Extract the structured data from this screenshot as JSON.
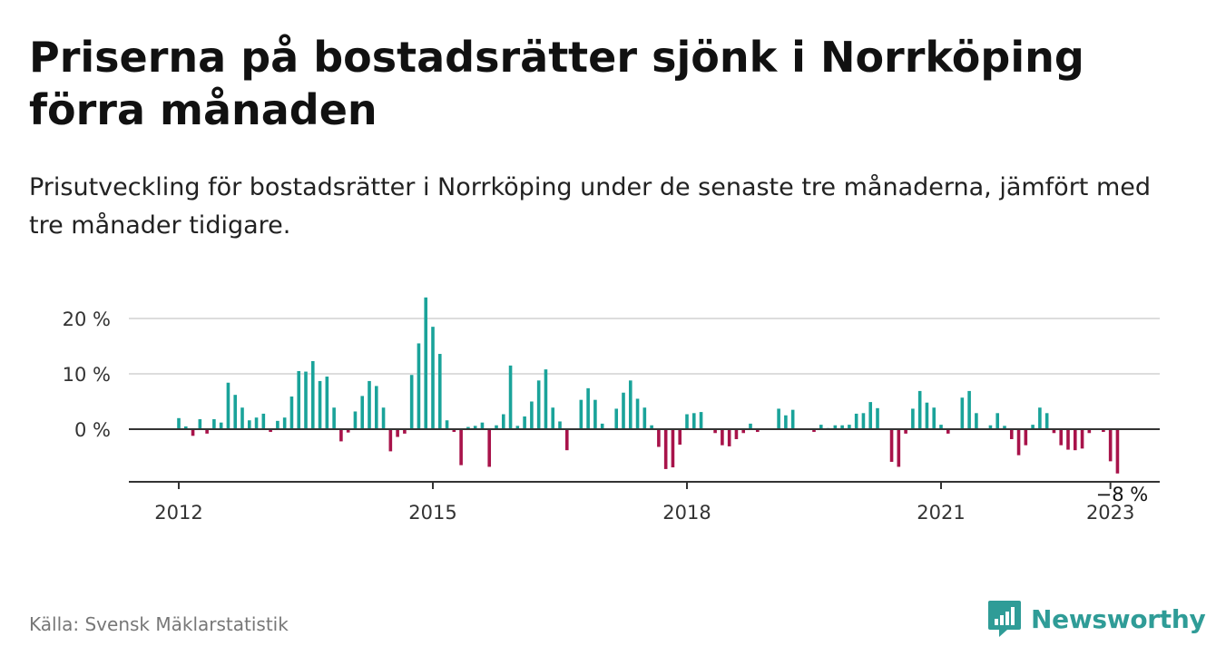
{
  "title": "Priserna på bostadsrätter sjönk i Norrköping förra månaden",
  "subtitle": "Prisutveckling för bostadsrätter i Norrköping under de senaste tre månaderna, jämfört med tre månader tidigare.",
  "source": "Källa: Svensk Mäklarstatistik",
  "brand": {
    "name": "Newsworthy",
    "icon": "newsworthy-logo-icon"
  },
  "colors": {
    "positive": "#1aa39a",
    "negative": "#a8134a",
    "grid": "#dddddd",
    "axis": "#333333"
  },
  "chart_data": {
    "type": "bar",
    "title": "Priserna på bostadsrätter sjönk i Norrköping förra månaden",
    "xlabel": "",
    "ylabel": "",
    "ylim": [
      -9.5,
      23
    ],
    "y_ticks": [
      {
        "value": 0,
        "label": "0 %"
      },
      {
        "value": 10,
        "label": "10 %"
      },
      {
        "value": 20,
        "label": "20 %"
      }
    ],
    "x_ticks": [
      {
        "value": 2012.0,
        "label": "2012"
      },
      {
        "value": 2015.0,
        "label": "2015"
      },
      {
        "value": 2018.0,
        "label": "2018"
      },
      {
        "value": 2021.0,
        "label": "2021"
      },
      {
        "value": 2023.0,
        "label": "2023"
      }
    ],
    "grid": true,
    "annotation": {
      "label": "−8 %",
      "value": -8
    },
    "x_start": "2012-01",
    "x_end": "2023-01",
    "values": [
      2,
      0.5,
      -1.2,
      1.8,
      -0.8,
      1.8,
      1.2,
      8.4,
      6.2,
      3.9,
      1.6,
      2.1,
      2.8,
      -0.5,
      1.5,
      2.1,
      5.9,
      10.5,
      10.4,
      12.3,
      8.7,
      9.5,
      3.9,
      -2.2,
      -0.6,
      3.2,
      6,
      8.7,
      7.8,
      3.9,
      -4,
      -1.4,
      -0.8,
      9.8,
      15.5,
      23.8,
      18.5,
      13.6,
      1.6,
      -0.5,
      -6.5,
      0.4,
      0.6,
      1.2,
      -6.8,
      0.7,
      2.7,
      11.5,
      0.6,
      2.3,
      5,
      8.8,
      10.8,
      3.9,
      1.4,
      -3.8,
      0,
      5.3,
      7.4,
      5.3,
      1,
      0,
      3.7,
      6.6,
      8.8,
      5.5,
      3.9,
      0.7,
      -3.2,
      -7.2,
      -6.9,
      -2.8,
      2.7,
      2.9,
      3.1,
      0,
      -0.7,
      -2.9,
      -3.1,
      -1.8,
      -0.7,
      1,
      -0.5,
      0,
      0,
      3.7,
      2.5,
      3.5,
      0,
      0,
      -0.5,
      0.8,
      0.2,
      0.7,
      0.7,
      0.8,
      2.8,
      2.9,
      4.9,
      3.8,
      0,
      -5.9,
      -6.8,
      -0.8,
      3.7,
      6.9,
      4.8,
      3.9,
      0.8,
      -0.8,
      0,
      5.7,
      6.9,
      2.9,
      0,
      0.7,
      2.9,
      0.6,
      -1.8,
      -4.7,
      -2.9,
      0.8,
      3.9,
      2.9,
      -0.7,
      -2.9,
      -3.7,
      -3.8,
      -3.5,
      -0.7,
      0,
      -0.5,
      -5.8,
      -8
    ]
  }
}
